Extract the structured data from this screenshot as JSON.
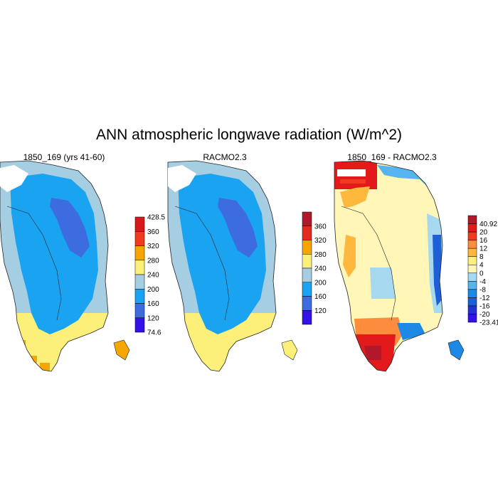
{
  "title": "ANN atmospheric longwave radiation (W/m^2)",
  "panels": [
    {
      "id": "model",
      "title": "1850_169 (yrs 41-60)",
      "colorbar": {
        "labels": [
          "428.5",
          "360",
          "320",
          "280",
          "240",
          "200",
          "160",
          "120",
          "74.6"
        ],
        "colors": [
          "#d7191c",
          "#f03b20",
          "#f7a500",
          "#fdf07a",
          "#a6cee3",
          "#1aa3f0",
          "#3d6be0",
          "#3311e8"
        ]
      }
    },
    {
      "id": "obs",
      "title": "RACMO2.3",
      "colorbar": {
        "labels": [
          "360",
          "320",
          "280",
          "240",
          "200",
          "160",
          "120"
        ],
        "colors": [
          "#b2182b",
          "#e32b1f",
          "#f7a500",
          "#fdf07a",
          "#a6cee3",
          "#1aa3f0",
          "#3d6be0",
          "#3311e8"
        ]
      }
    },
    {
      "id": "diff",
      "title": "1850_169 - RACMO2.3",
      "colorbar": {
        "labels": [
          "40.92",
          "20",
          "16",
          "12",
          "8",
          "4",
          "0",
          "-4",
          "-8",
          "-12",
          "-16",
          "-20",
          "-23.41"
        ],
        "colors": [
          "#b2182b",
          "#e31a1c",
          "#f03b20",
          "#fd8d3c",
          "#fdb83d",
          "#fdf07a",
          "#fff6b8",
          "#a6d8f0",
          "#56b4f0",
          "#1e88e5",
          "#1e5fd8",
          "#2233d0",
          "#3311e8"
        ]
      }
    }
  ]
}
